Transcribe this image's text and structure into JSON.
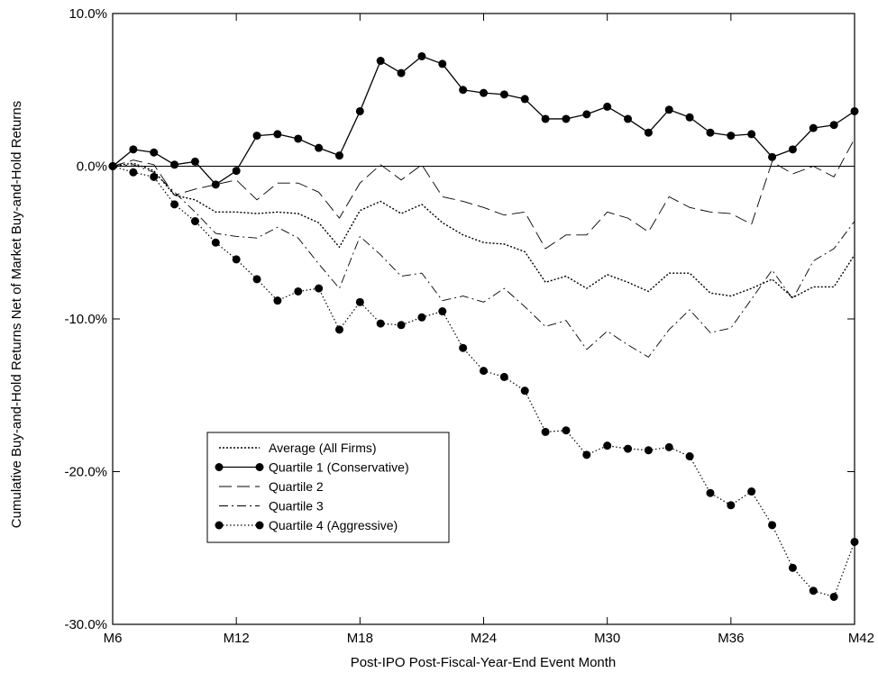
{
  "chart_data": {
    "type": "line",
    "xlabel": "Post-IPO Post-Fiscal-Year-End Event Month",
    "ylabel": "Cumulative Buy-and-Hold Returns Net of Market Buy-and-Hold Returns",
    "x": [
      6,
      7,
      8,
      9,
      10,
      11,
      12,
      13,
      14,
      15,
      16,
      17,
      18,
      19,
      20,
      21,
      22,
      23,
      24,
      25,
      26,
      27,
      28,
      29,
      30,
      31,
      32,
      33,
      34,
      35,
      36,
      37,
      38,
      39,
      40,
      41,
      42
    ],
    "xlim": [
      6,
      42
    ],
    "xticks": [
      6,
      12,
      18,
      24,
      30,
      36,
      42
    ],
    "xtick_labels": [
      "M6",
      "M12",
      "M18",
      "M24",
      "M30",
      "M36",
      "M42"
    ],
    "ylim": [
      -30,
      10
    ],
    "yticks": [
      10,
      0,
      -10,
      -20,
      -30
    ],
    "ytick_labels": [
      "10.0%",
      "0.0%",
      "-10.0%",
      "-20.0%",
      "-30.0%"
    ],
    "zero_line": true,
    "grid": false,
    "legend_position": "lower-left",
    "series": [
      {
        "name": "Average (All Firms)",
        "style": "dotted-fine",
        "markers": false,
        "values": [
          0,
          0.2,
          -0.3,
          -1.9,
          -2.2,
          -3.0,
          -3.0,
          -3.1,
          -3.0,
          -3.1,
          -3.7,
          -5.3,
          -2.9,
          -2.3,
          -3.1,
          -2.5,
          -3.7,
          -4.5,
          -5.0,
          -5.1,
          -5.6,
          -7.6,
          -7.2,
          -8.0,
          -7.1,
          -7.6,
          -8.2,
          -7.0,
          -7.0,
          -8.3,
          -8.5,
          -8.0,
          -7.4,
          -8.6,
          -7.9,
          -7.9,
          -5.8
        ]
      },
      {
        "name": "Quartile 1 (Conservative)",
        "style": "solid",
        "markers": true,
        "values": [
          0,
          1.1,
          0.9,
          0.1,
          0.3,
          -1.2,
          -0.3,
          2.0,
          2.1,
          1.8,
          1.2,
          0.7,
          3.6,
          6.9,
          6.1,
          7.2,
          6.7,
          5.0,
          4.8,
          4.7,
          4.4,
          3.1,
          3.1,
          3.4,
          3.9,
          3.1,
          2.2,
          3.7,
          3.2,
          2.2,
          2.0,
          2.1,
          0.6,
          1.1,
          2.5,
          2.7,
          3.6
        ]
      },
      {
        "name": "Quartile 2",
        "style": "long-dash",
        "markers": false,
        "values": [
          0,
          0.4,
          0.1,
          -1.9,
          -1.5,
          -1.2,
          -0.9,
          -2.2,
          -1.1,
          -1.1,
          -1.7,
          -3.4,
          -1.1,
          0.1,
          -0.9,
          0.1,
          -2.0,
          -2.3,
          -2.7,
          -3.2,
          -3.0,
          -5.4,
          -4.5,
          -4.5,
          -3.0,
          -3.4,
          -4.3,
          -2.0,
          -2.7,
          -3.0,
          -3.1,
          -3.8,
          0.3,
          -0.5,
          0.0,
          -0.7,
          1.8
        ]
      },
      {
        "name": "Quartile 3",
        "style": "dash-dot",
        "markers": false,
        "values": [
          0,
          0.1,
          -0.4,
          -1.7,
          -3.0,
          -4.4,
          -4.6,
          -4.7,
          -4.0,
          -4.7,
          -6.4,
          -8.0,
          -4.6,
          -5.8,
          -7.2,
          -7.0,
          -8.8,
          -8.5,
          -8.9,
          -8.0,
          -9.2,
          -10.5,
          -10.1,
          -12.0,
          -10.8,
          -11.7,
          -12.5,
          -10.7,
          -9.4,
          -10.9,
          -10.6,
          -8.7,
          -6.8,
          -8.7,
          -6.2,
          -5.4,
          -3.6
        ]
      },
      {
        "name": "Quartile 4 (Aggressive)",
        "style": "dotted",
        "markers": true,
        "values": [
          0,
          -0.4,
          -0.7,
          -2.5,
          -3.6,
          -5.0,
          -6.1,
          -7.4,
          -8.8,
          -8.2,
          -8.0,
          -10.7,
          -8.9,
          -10.3,
          -10.4,
          -9.9,
          -9.5,
          -11.9,
          -13.4,
          -13.8,
          -14.7,
          -17.4,
          -17.3,
          -18.9,
          -18.3,
          -18.5,
          -18.6,
          -18.4,
          -19.0,
          -21.4,
          -22.2,
          -21.3,
          -23.5,
          -26.3,
          -27.8,
          -28.2,
          -24.6
        ]
      }
    ]
  }
}
